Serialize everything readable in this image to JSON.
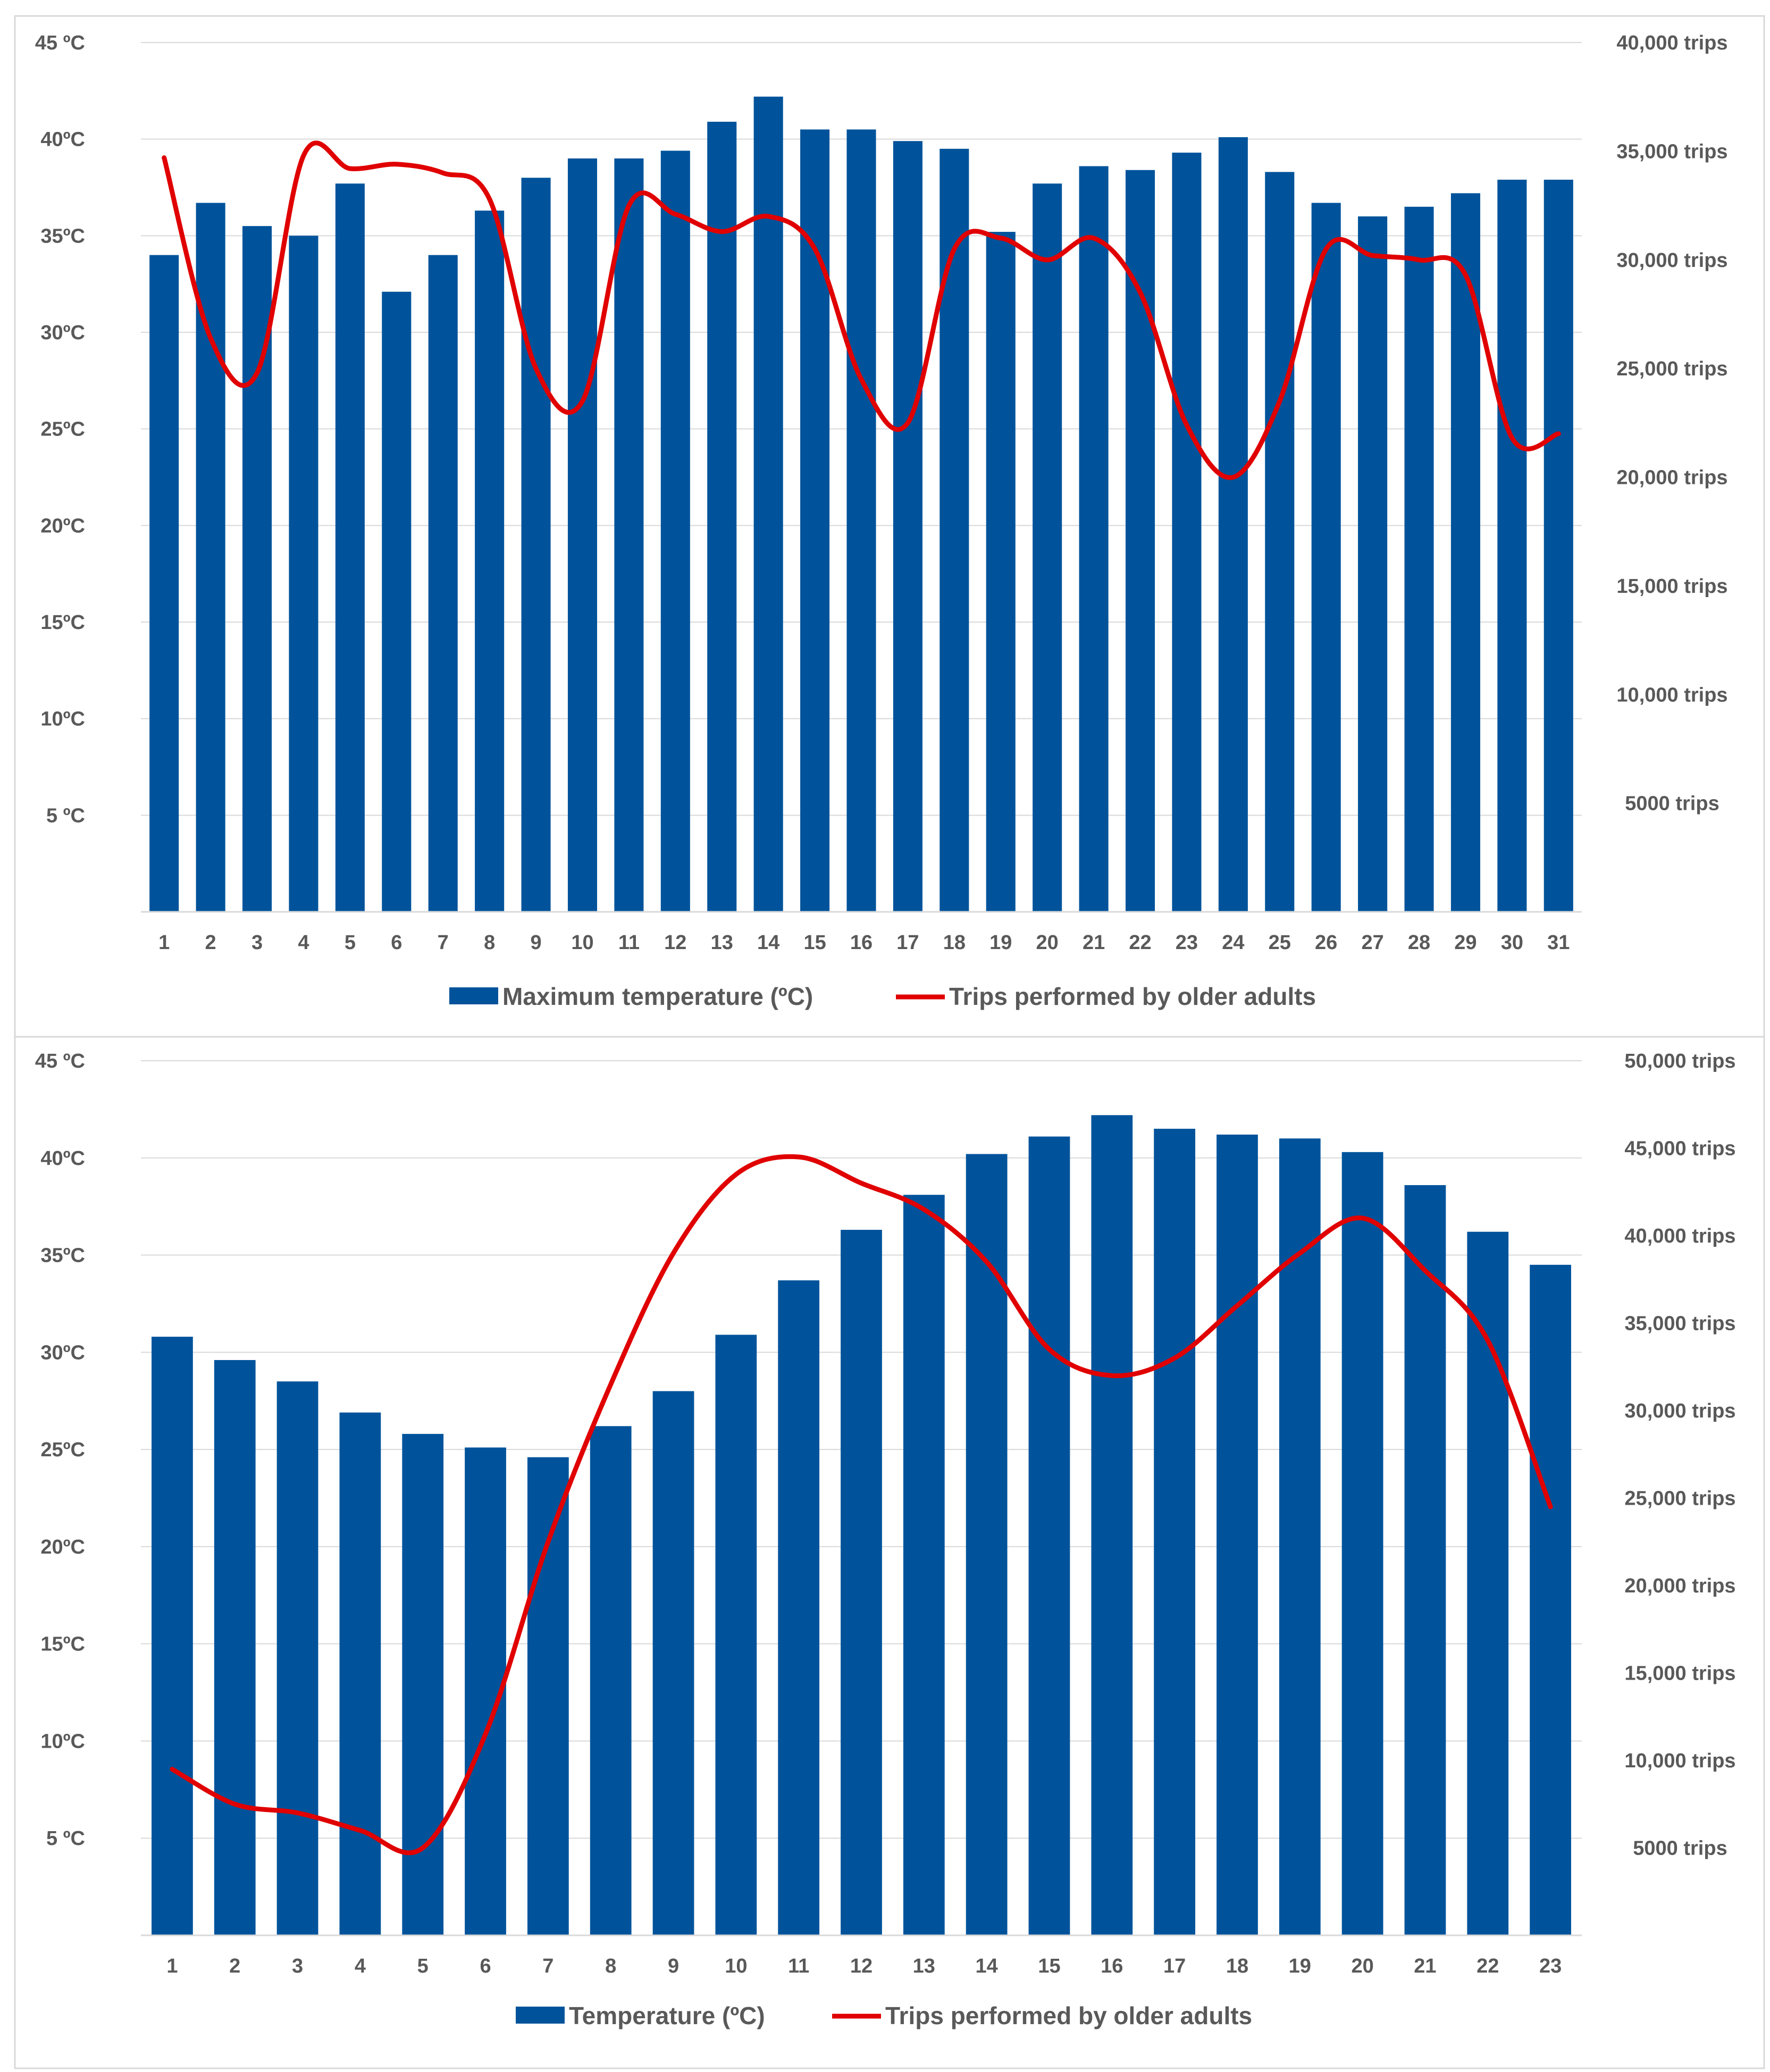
{
  "chart_data": [
    {
      "type": "bar",
      "title": "",
      "xlabel": "",
      "ylabel": "",
      "categories": [
        "1",
        "2",
        "3",
        "4",
        "5",
        "6",
        "7",
        "8",
        "9",
        "10",
        "11",
        "12",
        "13",
        "14",
        "15",
        "16",
        "17",
        "18",
        "19",
        "20",
        "21",
        "22",
        "23",
        "24",
        "25",
        "26",
        "27",
        "28",
        "29",
        "30",
        "31"
      ],
      "ylim": [
        0,
        45
      ],
      "y2lim": [
        0,
        40000
      ],
      "y_ticks": [
        {
          "value": 5,
          "label": "5 ºC"
        },
        {
          "value": 10,
          "label": "10ºC"
        },
        {
          "value": 15,
          "label": "15ºC"
        },
        {
          "value": 20,
          "label": "20ºC"
        },
        {
          "value": 25,
          "label": "25ºC"
        },
        {
          "value": 30,
          "label": "30ºC"
        },
        {
          "value": 35,
          "label": "35ºC"
        },
        {
          "value": 40,
          "label": "40ºC"
        },
        {
          "value": 45,
          "label": "45 ºC"
        }
      ],
      "y2_ticks": [
        {
          "value": 5000,
          "label": "5000 trips"
        },
        {
          "value": 10000,
          "label": "10,000 trips"
        },
        {
          "value": 15000,
          "label": "15,000 trips"
        },
        {
          "value": 20000,
          "label": "20,000 trips"
        },
        {
          "value": 25000,
          "label": "25,000 trips"
        },
        {
          "value": 30000,
          "label": "30,000 trips"
        },
        {
          "value": 35000,
          "label": "35,000 trips"
        },
        {
          "value": 40000,
          "label": "40,000 trips"
        }
      ],
      "series": [
        {
          "name": "Maximum temperature (ºC)",
          "kind": "bar",
          "axis": "left",
          "color": "#00539B",
          "values": [
            34.0,
            36.7,
            35.5,
            35.0,
            37.7,
            32.1,
            34.0,
            36.3,
            38.0,
            39.0,
            39.0,
            39.4,
            40.9,
            42.2,
            40.5,
            40.5,
            39.9,
            39.5,
            35.2,
            37.7,
            38.6,
            38.4,
            39.3,
            40.1,
            38.3,
            36.7,
            36.0,
            36.5,
            37.2,
            37.9,
            37.9
          ]
        },
        {
          "name": "Trips performed by older adults",
          "kind": "line",
          "axis": "right",
          "color": "#E00000",
          "values": [
            34700,
            26400,
            24800,
            34800,
            34200,
            34400,
            34000,
            32800,
            25000,
            23500,
            32500,
            32100,
            31300,
            32000,
            30500,
            24500,
            22500,
            30500,
            31000,
            30000,
            31000,
            28500,
            22400,
            20000,
            23500,
            30500,
            30200,
            30000,
            29300,
            21800,
            22000
          ]
        }
      ],
      "legend": "bottom"
    },
    {
      "type": "bar",
      "title": "",
      "xlabel": "",
      "ylabel": "",
      "categories": [
        "1",
        "2",
        "3",
        "4",
        "5",
        "6",
        "7",
        "8",
        "9",
        "10",
        "11",
        "12",
        "13",
        "14",
        "15",
        "16",
        "17",
        "18",
        "19",
        "20",
        "21",
        "22",
        "23"
      ],
      "ylim": [
        0,
        45
      ],
      "y2lim": [
        0,
        50000
      ],
      "y_ticks": [
        {
          "value": 5,
          "label": "5 ºC"
        },
        {
          "value": 10,
          "label": "10ºC"
        },
        {
          "value": 15,
          "label": "15ºC"
        },
        {
          "value": 20,
          "label": "20ºC"
        },
        {
          "value": 25,
          "label": "25ºC"
        },
        {
          "value": 30,
          "label": "30ºC"
        },
        {
          "value": 35,
          "label": "35ºC"
        },
        {
          "value": 40,
          "label": "40ºC"
        },
        {
          "value": 45,
          "label": "45 ºC"
        }
      ],
      "y2_ticks": [
        {
          "value": 5000,
          "label": "5000 trips"
        },
        {
          "value": 10000,
          "label": "10,000 trips"
        },
        {
          "value": 15000,
          "label": "15,000 trips"
        },
        {
          "value": 20000,
          "label": "20,000 trips"
        },
        {
          "value": 25000,
          "label": "25,000 trips"
        },
        {
          "value": 30000,
          "label": "30,000 trips"
        },
        {
          "value": 35000,
          "label": "35,000 trips"
        },
        {
          "value": 40000,
          "label": "40,000 trips"
        },
        {
          "value": 45000,
          "label": "45,000 trips"
        },
        {
          "value": 50000,
          "label": "50,000 trips"
        }
      ],
      "series": [
        {
          "name": "Temperature (ºC)",
          "kind": "bar",
          "axis": "left",
          "color": "#00539B",
          "values": [
            30.8,
            29.6,
            28.5,
            26.9,
            25.8,
            25.1,
            24.6,
            26.2,
            28.0,
            30.9,
            33.7,
            36.3,
            38.1,
            40.2,
            41.1,
            42.2,
            41.5,
            41.2,
            41.0,
            40.3,
            38.6,
            36.2,
            34.5
          ]
        },
        {
          "name": "Trips performed by older adults",
          "kind": "line",
          "axis": "right",
          "color": "#E00000",
          "values": [
            9500,
            7500,
            7000,
            6000,
            5000,
            11500,
            22500,
            31500,
            39000,
            43500,
            44500,
            43000,
            41500,
            38500,
            33500,
            32000,
            33000,
            36000,
            39000,
            41000,
            38000,
            34000,
            24500
          ]
        }
      ],
      "legend": "bottom"
    }
  ]
}
